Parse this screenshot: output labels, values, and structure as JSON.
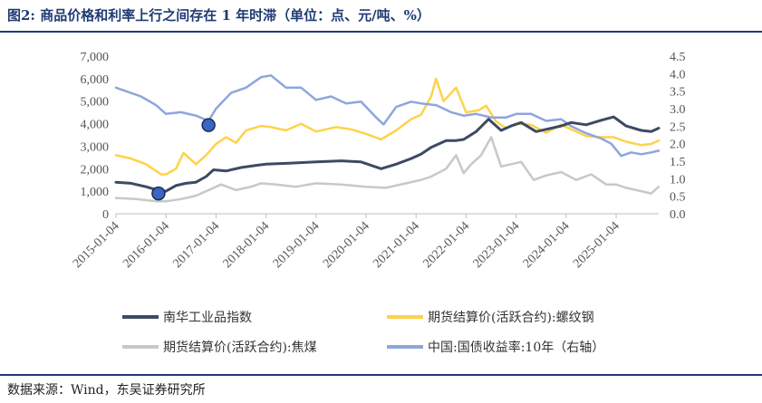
{
  "title": {
    "prefix": "图2:",
    "text": "商品价格和利率上行之间存在 1 年时滞（单位：点、元/吨、%）"
  },
  "source": "数据来源：Wind，东吴证券研究所",
  "colors": {
    "nanhua": "#3d4a63",
    "rebar": "#fed24a",
    "coke": "#c8c8c8",
    "bond": "#8ea6dc",
    "marker": "#3a66c4",
    "rule": "#1f3b73"
  },
  "chart_data": {
    "type": "line",
    "x_ticks": [
      "2015-01-04",
      "2016-01-04",
      "2017-01-04",
      "2018-01-04",
      "2019-01-04",
      "2020-01-04",
      "2021-01-04",
      "2022-01-04",
      "2023-01-04",
      "2024-01-04",
      "2025-01-04"
    ],
    "x_range": [
      2015.0,
      2025.85
    ],
    "y_left": {
      "range": [
        0,
        7000
      ],
      "ticks": [
        "0",
        "1,000",
        "2,000",
        "3,000",
        "4,000",
        "5,000",
        "6,000",
        "7,000"
      ]
    },
    "y_right": {
      "range": [
        0,
        4.5
      ],
      "ticks": [
        "0.0",
        "0.5",
        "1.0",
        "1.5",
        "2.0",
        "2.5",
        "3.0",
        "3.5",
        "4.0",
        "4.5"
      ]
    },
    "series": [
      {
        "name": "南华工业品指数",
        "key": "nanhua",
        "axis": "left",
        "x": [
          2015.0,
          2015.3,
          2015.6,
          2015.9,
          2016.0,
          2016.2,
          2016.4,
          2016.6,
          2016.8,
          2016.95,
          2017.2,
          2017.5,
          2017.8,
          2018.0,
          2018.5,
          2019.0,
          2019.5,
          2019.9,
          2020.1,
          2020.3,
          2020.6,
          2020.9,
          2021.1,
          2021.3,
          2021.6,
          2021.8,
          2021.95,
          2022.2,
          2022.45,
          2022.7,
          2022.9,
          2023.1,
          2023.4,
          2023.6,
          2023.9,
          2024.1,
          2024.4,
          2024.7,
          2024.95,
          2025.2,
          2025.5,
          2025.7,
          2025.85
        ],
        "y": [
          1400,
          1350,
          1200,
          1000,
          1000,
          1250,
          1350,
          1400,
          1650,
          1950,
          1900,
          2050,
          2150,
          2200,
          2250,
          2300,
          2350,
          2300,
          2150,
          2000,
          2200,
          2450,
          2650,
          2950,
          3250,
          3250,
          3300,
          3650,
          4200,
          3700,
          3900,
          4050,
          3650,
          3750,
          3900,
          4050,
          3950,
          4150,
          4300,
          3900,
          3700,
          3650,
          3800
        ]
      },
      {
        "name": "期货结算价(活跃合约):螺纹钢",
        "key": "rebar",
        "axis": "left",
        "x": [
          2015.0,
          2015.3,
          2015.6,
          2015.9,
          2016.0,
          2016.2,
          2016.35,
          2016.6,
          2016.8,
          2017.0,
          2017.2,
          2017.4,
          2017.6,
          2017.9,
          2018.1,
          2018.4,
          2018.7,
          2019.0,
          2019.4,
          2019.7,
          2020.0,
          2020.3,
          2020.6,
          2020.9,
          2021.1,
          2021.3,
          2021.4,
          2021.55,
          2021.8,
          2022.0,
          2022.25,
          2022.4,
          2022.6,
          2022.8,
          2023.0,
          2023.3,
          2023.6,
          2023.9,
          2024.1,
          2024.4,
          2024.7,
          2024.95,
          2025.2,
          2025.5,
          2025.7,
          2025.85
        ],
        "y": [
          2600,
          2450,
          2200,
          1750,
          1750,
          2000,
          2700,
          2200,
          2600,
          3100,
          3400,
          3150,
          3700,
          3900,
          3850,
          3700,
          4000,
          3650,
          3850,
          3750,
          3550,
          3300,
          3700,
          4200,
          4400,
          5200,
          6000,
          5000,
          5600,
          4500,
          4600,
          4800,
          4100,
          3800,
          4000,
          3950,
          3600,
          3950,
          3750,
          3450,
          3400,
          3400,
          3200,
          3050,
          3100,
          3250
        ]
      },
      {
        "name": "期货结算价(活跃合约):焦煤",
        "key": "coke",
        "axis": "left",
        "x": [
          2015.0,
          2015.4,
          2015.8,
          2016.0,
          2016.3,
          2016.6,
          2016.9,
          2017.1,
          2017.4,
          2017.7,
          2017.9,
          2018.2,
          2018.6,
          2019.0,
          2019.5,
          2020.0,
          2020.4,
          2020.8,
          2021.1,
          2021.3,
          2021.6,
          2021.8,
          2021.95,
          2022.1,
          2022.3,
          2022.5,
          2022.7,
          2022.9,
          2023.1,
          2023.35,
          2023.6,
          2023.9,
          2024.2,
          2024.5,
          2024.8,
          2025.0,
          2025.2,
          2025.5,
          2025.7,
          2025.85
        ],
        "y": [
          700,
          650,
          550,
          550,
          650,
          800,
          1100,
          1300,
          1050,
          1200,
          1350,
          1300,
          1200,
          1350,
          1300,
          1200,
          1150,
          1350,
          1500,
          1650,
          2000,
          2600,
          1800,
          2200,
          2600,
          3400,
          2100,
          2200,
          2300,
          1500,
          1700,
          1850,
          1500,
          1750,
          1300,
          1300,
          1150,
          1000,
          900,
          1200
        ]
      },
      {
        "name": "中国:国债收益率:10年（右轴）",
        "key": "bond",
        "axis": "right",
        "x": [
          2015.0,
          2015.2,
          2015.5,
          2015.8,
          2016.0,
          2016.3,
          2016.6,
          2016.85,
          2017.0,
          2017.3,
          2017.6,
          2017.9,
          2018.1,
          2018.4,
          2018.7,
          2019.0,
          2019.3,
          2019.6,
          2019.9,
          2020.2,
          2020.35,
          2020.6,
          2020.9,
          2021.1,
          2021.4,
          2021.7,
          2021.95,
          2022.2,
          2022.5,
          2022.8,
          2023.0,
          2023.3,
          2023.6,
          2023.9,
          2024.1,
          2024.4,
          2024.7,
          2024.9,
          2025.1,
          2025.3,
          2025.5,
          2025.7,
          2025.85
        ],
        "y": [
          3.6,
          3.5,
          3.35,
          3.1,
          2.85,
          2.9,
          2.8,
          2.65,
          3.0,
          3.45,
          3.6,
          3.9,
          3.95,
          3.6,
          3.6,
          3.25,
          3.35,
          3.15,
          3.2,
          2.75,
          2.55,
          3.05,
          3.2,
          3.15,
          3.1,
          2.9,
          2.8,
          2.85,
          2.75,
          2.75,
          2.85,
          2.85,
          2.65,
          2.7,
          2.5,
          2.3,
          2.15,
          2.0,
          1.65,
          1.75,
          1.7,
          1.75,
          1.8
        ]
      }
    ],
    "markers": [
      {
        "x": 2015.85,
        "y": 900,
        "axis": "left"
      },
      {
        "x": 2016.85,
        "y": 2.53,
        "axis": "right"
      }
    ],
    "legend": [
      {
        "key": "nanhua",
        "label": "南华工业品指数"
      },
      {
        "key": "rebar",
        "label": "期货结算价(活跃合约):螺纹钢"
      },
      {
        "key": "coke",
        "label": "期货结算价(活跃合约):焦煤"
      },
      {
        "key": "bond",
        "label": "中国:国债收益率:10年（右轴）"
      }
    ],
    "legend_position": "bottom",
    "grid": false
  }
}
